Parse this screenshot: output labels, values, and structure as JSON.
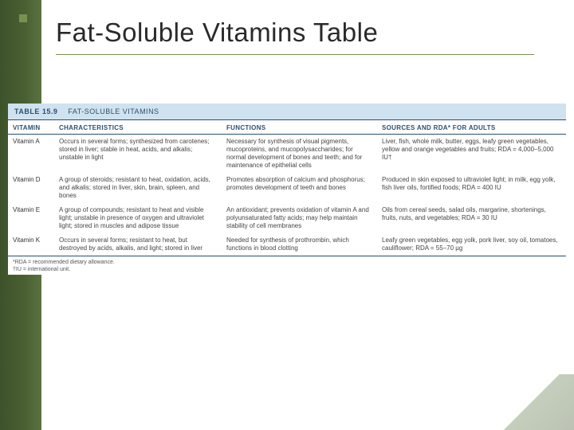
{
  "slide": {
    "title": "Fat-Soluble Vitamins Table",
    "accent_color": "#7a9050",
    "sidebar_gradient": [
      "#3d5229",
      "#5a7240"
    ]
  },
  "table": {
    "label_number": "TABLE 15.9",
    "label_title": "FAT-SOLUBLE VITAMINS",
    "header_bg": "#cfe2ef",
    "rule_color": "#2a5070",
    "columns": [
      "VITAMIN",
      "CHARACTERISTICS",
      "FUNCTIONS",
      "SOURCES AND RDA* FOR ADULTS"
    ],
    "rows": [
      {
        "vitamin": "Vitamin A",
        "characteristics": "Occurs in several forms; synthesized from carotenes; stored in liver; stable in heat, acids, and alkalis; unstable in light",
        "functions": "Necessary for synthesis of visual pigments, mucoproteins, and mucopolysaccharides; for normal development of bones and teeth; and for maintenance of epithelial cells",
        "sources": "Liver, fish, whole milk, butter, eggs, leafy green vegetables, yellow and orange vegetables and fruits; RDA = 4,000–5,000 IU†"
      },
      {
        "vitamin": "Vitamin D",
        "characteristics": "A group of steroids; resistant to heat, oxidation, acids, and alkalis; stored in liver, skin, brain, spleen, and bones",
        "functions": "Promotes absorption of calcium and phosphorus; promotes development of teeth and bones",
        "sources": "Produced in skin exposed to ultraviolet light; in milk, egg yolk, fish liver oils, fortified foods; RDA = 400 IU"
      },
      {
        "vitamin": "Vitamin E",
        "characteristics": "A group of compounds; resistant to heat and visible light; unstable in presence of oxygen and ultraviolet light; stored in muscles and adipose tissue",
        "functions": "An antioxidant; prevents oxidation of vitamin A and polyunsaturated fatty acids; may help maintain stability of cell membranes",
        "sources": "Oils from cereal seeds, salad oils, margarine, shortenings, fruits, nuts, and vegetables; RDA = 30 IU"
      },
      {
        "vitamin": "Vitamin K",
        "characteristics": "Occurs in several forms; resistant to heat, but destroyed by acids, alkalis, and light; stored in liver",
        "functions": "Needed for synthesis of prothrombin, which functions in blood clotting",
        "sources": "Leafy green vegetables, egg yolk, pork liver, soy oil, tomatoes, cauliflower; RDA = 55–70 µg"
      }
    ],
    "footnotes": [
      "*RDA = recommended dietary allowance.",
      "†IU = international unit."
    ]
  }
}
